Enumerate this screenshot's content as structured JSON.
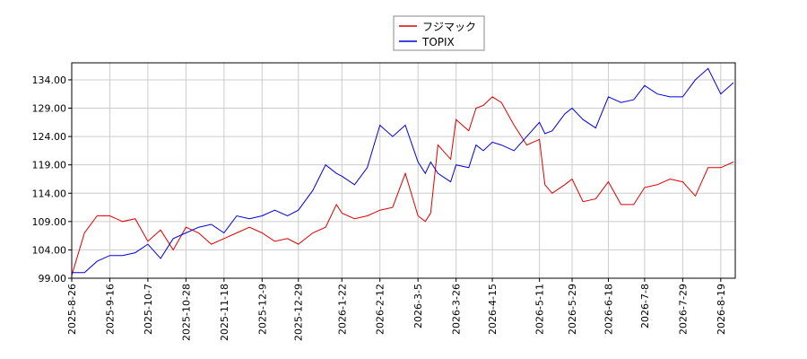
{
  "chart_data": {
    "type": "line",
    "x": [
      "2025-8-26",
      "2025-9-2",
      "2025-9-9",
      "2025-9-16",
      "2025-9-23",
      "2025-9-30",
      "2025-10-7",
      "2025-10-14",
      "2025-10-21",
      "2025-10-28",
      "2025-11-4",
      "2025-11-11",
      "2025-11-18",
      "2025-11-25",
      "2025-12-2",
      "2025-12-9",
      "2025-12-16",
      "2025-12-23",
      "2025-12-29",
      "2026-1-6",
      "2026-1-13",
      "2026-1-19",
      "2026-1-22",
      "2026-1-29",
      "2026-2-5",
      "2026-2-12",
      "2026-2-19",
      "2026-2-26",
      "2026-3-5",
      "2026-3-9",
      "2026-3-12",
      "2026-3-16",
      "2026-3-23",
      "2026-3-26",
      "2026-4-2",
      "2026-4-6",
      "2026-4-10",
      "2026-4-15",
      "2026-4-20",
      "2026-4-27",
      "2026-5-4",
      "2026-5-11",
      "2026-5-14",
      "2026-5-18",
      "2026-5-25",
      "2026-5-29",
      "2026-6-4",
      "2026-6-11",
      "2026-6-18",
      "2026-6-25",
      "2026-7-2",
      "2026-7-8",
      "2026-7-15",
      "2026-7-22",
      "2026-7-29",
      "2026-8-5",
      "2026-8-12",
      "2026-8-19",
      "2026-8-26"
    ],
    "series": [
      {
        "name": "フジマック",
        "color": "#dd0000",
        "values": [
          99.5,
          107,
          110,
          110,
          109,
          109.5,
          105.5,
          107.5,
          104,
          108,
          107,
          105,
          106,
          107,
          108,
          107,
          105.5,
          106,
          105,
          107,
          108,
          112,
          110.5,
          109.5,
          110,
          111,
          111.5,
          117.5,
          110,
          109,
          110.5,
          122.5,
          120,
          127,
          125,
          129,
          129.5,
          131,
          130,
          126,
          122.5,
          123.5,
          115.5,
          114,
          115.5,
          116.5,
          112.5,
          113,
          116,
          112,
          112,
          115,
          115.5,
          116.5,
          116,
          113.5,
          118.5,
          118.5,
          119.5
        ]
      },
      {
        "name": "TOPIX",
        "color": "#0000dd",
        "values": [
          100,
          100,
          102,
          103,
          103,
          103.5,
          105,
          102.5,
          106,
          107,
          108,
          108.5,
          107,
          110,
          109.5,
          110,
          111,
          110,
          111,
          114.5,
          119,
          117.5,
          117,
          115.5,
          118.5,
          126,
          124,
          126,
          119.5,
          117.5,
          119.5,
          117.5,
          116,
          119,
          118.5,
          122.5,
          121.5,
          123,
          122.5,
          121.5,
          124,
          126.5,
          124.5,
          125,
          128,
          129,
          127,
          125.5,
          131,
          130,
          130.5,
          133,
          131.5,
          131,
          131,
          134,
          136,
          131.5,
          133.5
        ]
      }
    ],
    "xlim": [
      "2025-8-26",
      "2026-8-27"
    ],
    "xticks": [
      "2025-8-26",
      "2025-9-16",
      "2025-10-7",
      "2025-10-28",
      "2025-11-18",
      "2025-12-9",
      "2025-12-29",
      "2026-1-22",
      "2026-2-12",
      "2026-3-5",
      "2026-3-26",
      "2026-4-15",
      "2026-5-11",
      "2026-5-29",
      "2026-6-18",
      "2026-7-8",
      "2026-7-29",
      "2026-8-19"
    ],
    "ylim": [
      99,
      137
    ],
    "yticks": [
      {
        "value": 99,
        "label": "99.00"
      },
      {
        "value": 104,
        "label": "104.00"
      },
      {
        "value": 109,
        "label": "109.00"
      },
      {
        "value": 114,
        "label": "114.00"
      },
      {
        "value": 119,
        "label": "119.00"
      },
      {
        "value": 124,
        "label": "124.00"
      },
      {
        "value": 129,
        "label": "129.00"
      },
      {
        "value": 134,
        "label": "134.00"
      }
    ],
    "grid": true,
    "legend": "top"
  }
}
